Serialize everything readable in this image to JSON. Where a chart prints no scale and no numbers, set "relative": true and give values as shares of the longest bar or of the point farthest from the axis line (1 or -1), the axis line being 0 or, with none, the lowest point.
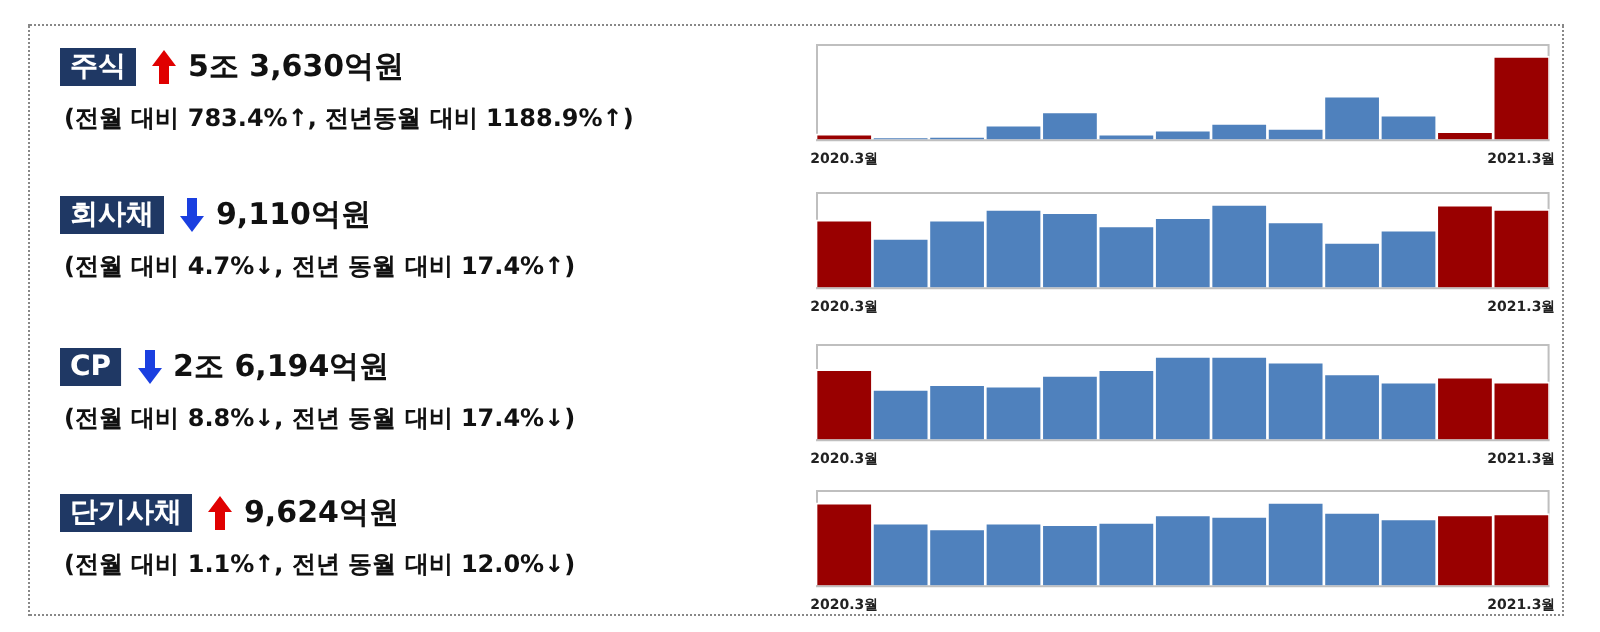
{
  "chart_data": [
    {
      "type": "bar",
      "relative": true,
      "annotations": [
        "주식",
        "5조 3,630억원",
        "(전월 대비 783.4%↑, 전년동월 대비 1188.9%↑)"
      ],
      "categories": [
        "2020.3월",
        null,
        null,
        null,
        null,
        null,
        null,
        null,
        null,
        null,
        null,
        null,
        "2021.3월"
      ],
      "values": [
        0.06,
        0.01,
        0.02,
        0.17,
        0.33,
        0.06,
        0.11,
        0.19,
        0.13,
        0.52,
        0.29,
        0.09,
        1
      ],
      "colors": [
        "#990000",
        "#4f81bd",
        "#4f81bd",
        "#4f81bd",
        "#4f81bd",
        "#4f81bd",
        "#4f81bd",
        "#4f81bd",
        "#4f81bd",
        "#4f81bd",
        "#4f81bd",
        "#990000",
        "#990000"
      ],
      "grid": false,
      "legend": false
    },
    {
      "type": "bar",
      "relative": true,
      "annotations": [
        "회사채",
        "9,110억원",
        "(전월 대비 4.7%↓, 전년 동월 대비 17.4%↑)"
      ],
      "categories": [
        "2020.3월",
        null,
        null,
        null,
        null,
        null,
        null,
        null,
        null,
        null,
        null,
        null,
        "2021.3월"
      ],
      "values": [
        0.81,
        0.59,
        0.81,
        0.94,
        0.9,
        0.74,
        0.84,
        1,
        0.79,
        0.54,
        0.69,
        0.99,
        0.94
      ],
      "colors": [
        "#990000",
        "#4f81bd",
        "#4f81bd",
        "#4f81bd",
        "#4f81bd",
        "#4f81bd",
        "#4f81bd",
        "#4f81bd",
        "#4f81bd",
        "#4f81bd",
        "#4f81bd",
        "#990000",
        "#990000"
      ],
      "grid": false,
      "legend": false
    },
    {
      "type": "bar",
      "relative": true,
      "annotations": [
        "CP",
        "2조 6,194억원",
        "(전월 대비 8.8%↓, 전년 동월 대비 17.4%↓)"
      ],
      "categories": [
        "2020.3월",
        null,
        null,
        null,
        null,
        null,
        null,
        null,
        null,
        null,
        null,
        null,
        "2021.3월"
      ],
      "values": [
        0.84,
        0.6,
        0.66,
        0.64,
        0.77,
        0.84,
        1,
        1,
        0.93,
        0.79,
        0.69,
        0.75,
        0.69
      ],
      "colors": [
        "#990000",
        "#4f81bd",
        "#4f81bd",
        "#4f81bd",
        "#4f81bd",
        "#4f81bd",
        "#4f81bd",
        "#4f81bd",
        "#4f81bd",
        "#4f81bd",
        "#4f81bd",
        "#990000",
        "#990000"
      ],
      "grid": false,
      "legend": false
    },
    {
      "type": "bar",
      "relative": true,
      "annotations": [
        "단기사채",
        "9,624억원",
        "(전월 대비 1.1%↑, 전년 동월 대비 12.0%↓)"
      ],
      "categories": [
        "2020.3월",
        null,
        null,
        null,
        null,
        null,
        null,
        null,
        null,
        null,
        null,
        null,
        "2021.3월"
      ],
      "values": [
        0.99,
        0.75,
        0.68,
        0.75,
        0.73,
        0.76,
        0.85,
        0.83,
        1,
        0.88,
        0.8,
        0.85,
        0.86
      ],
      "colors": [
        "#990000",
        "#4f81bd",
        "#4f81bd",
        "#4f81bd",
        "#4f81bd",
        "#4f81bd",
        "#4f81bd",
        "#4f81bd",
        "#4f81bd",
        "#4f81bd",
        "#4f81bd",
        "#990000",
        "#990000"
      ],
      "grid": false,
      "legend": false
    }
  ]
}
